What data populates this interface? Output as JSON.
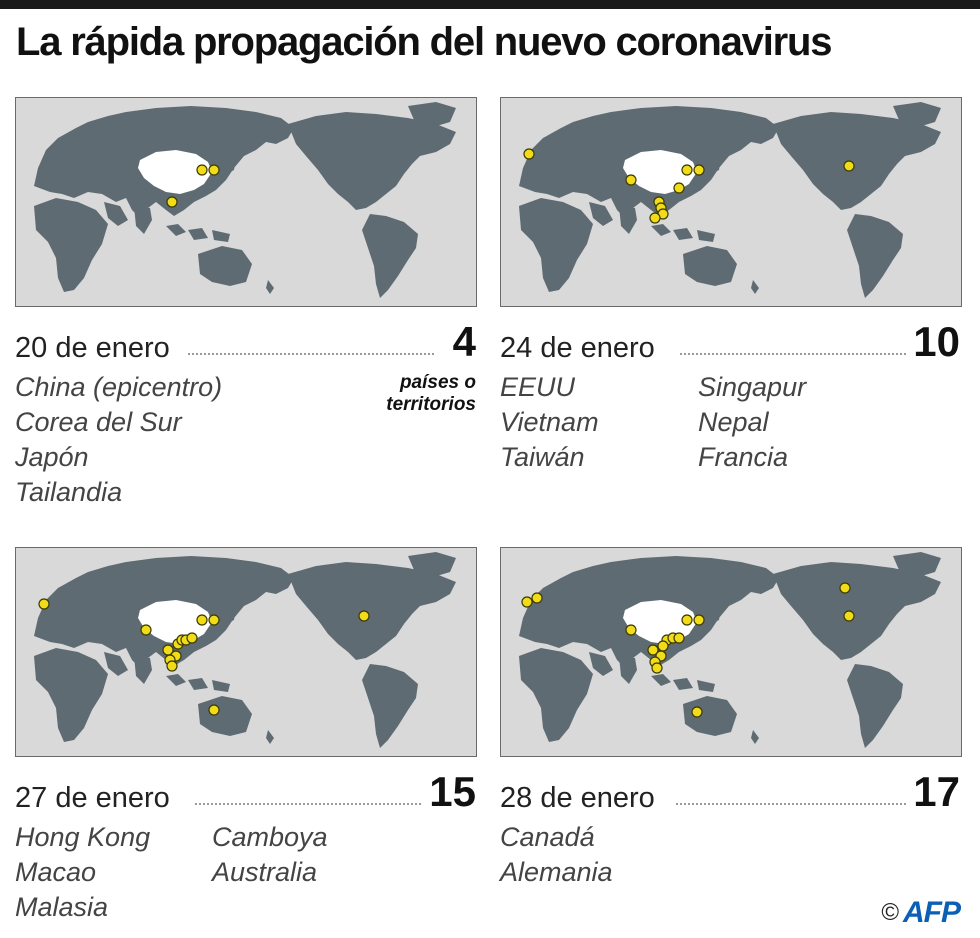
{
  "title": "La rápida propagación del nuevo coronavirus",
  "unit_label_line1": "países o",
  "unit_label_line2": "territorios",
  "credit": {
    "copyright": "©",
    "agency": "AFP"
  },
  "colors": {
    "ocean": "#d9d9d9",
    "land": "#5f6b73",
    "china": "#ffffff",
    "dot": "#f2dc1a",
    "dot_stroke": "#3a3a00"
  },
  "panels": [
    {
      "date": "20 de enero",
      "count": "4",
      "countries": [
        "China (epicentro)",
        "Corea del Sur",
        "Japón",
        "Tailandia"
      ],
      "dot_count": 3
    },
    {
      "date": "24 de enero",
      "count": "10",
      "countries": [
        "EEUU",
        "Vietnam",
        "Taiwán",
        "Singapur",
        "Nepal",
        "Francia"
      ],
      "dot_count": 10
    },
    {
      "date": "27 de enero",
      "count": "15",
      "countries": [
        "Hong Kong",
        "Macao",
        "Malasia",
        "Camboya",
        "Australia"
      ],
      "dot_count": 14
    },
    {
      "date": "28 de enero",
      "count": "17",
      "countries": [
        "Canadá",
        "Alemania"
      ],
      "dot_count": 16
    }
  ]
}
